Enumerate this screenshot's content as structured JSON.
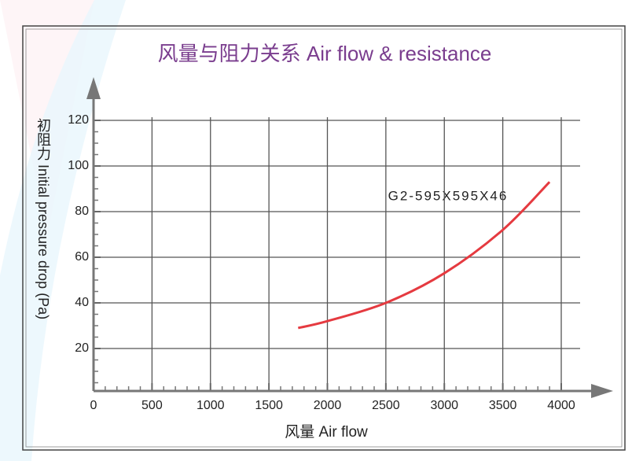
{
  "chart_data": {
    "type": "line",
    "title": "风量与阻力关系  Air flow & resistance",
    "x_label": "风量  Air flow",
    "y_label": "初阻力 Initial pressure drop (Pa)",
    "annotation": "G2-595X595X46",
    "x": [
      1750,
      2000,
      2500,
      3000,
      3500,
      3900
    ],
    "series": [
      {
        "name": "G2-595X595X46",
        "color": "#e53a40",
        "values": [
          29,
          32,
          40,
          53,
          72,
          93
        ]
      }
    ],
    "xlim": [
      0,
      4000
    ],
    "xticks": [
      0,
      500,
      1000,
      1500,
      2000,
      2500,
      3000,
      3500,
      4000
    ],
    "ylim": [
      0,
      120
    ],
    "yticks": [
      20,
      40,
      60,
      80,
      100,
      120
    ],
    "grid": true
  }
}
